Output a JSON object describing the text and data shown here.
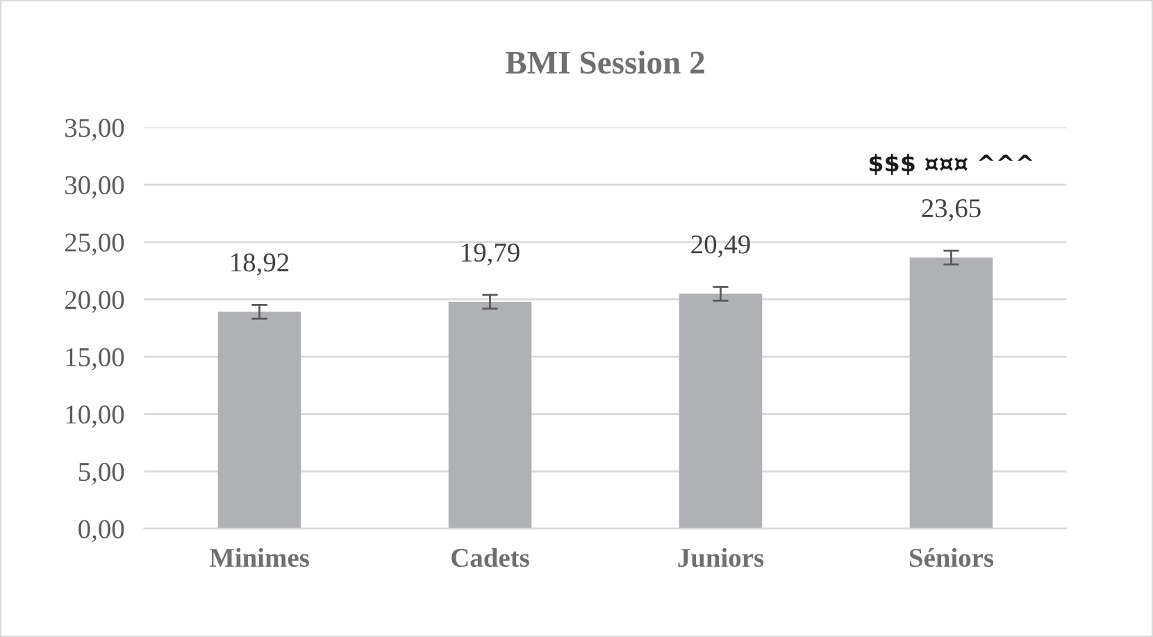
{
  "chart_data": {
    "type": "bar",
    "title": "BMI Session 2",
    "categories": [
      "Minimes",
      "Cadets",
      "Juniors",
      "Séniors"
    ],
    "values": [
      18.92,
      19.79,
      20.49,
      23.65
    ],
    "errors": [
      0.6,
      0.6,
      0.6,
      0.6
    ],
    "color": "#b0b1b4",
    "value_labels": [
      "18,92",
      "19,79",
      "20,49",
      "23,65"
    ],
    "annotations": [
      "$$$ ¤¤¤ ^^^"
    ],
    "ylim": [
      0,
      35
    ],
    "yticks": [
      {
        "value": 0,
        "label": "0,00"
      },
      {
        "value": 5,
        "label": "5,00"
      },
      {
        "value": 10,
        "label": "10,00"
      },
      {
        "value": 15,
        "label": "15,00"
      },
      {
        "value": 20,
        "label": "20,00"
      },
      {
        "value": 25,
        "label": "25,00"
      },
      {
        "value": 30,
        "label": "30,00"
      },
      {
        "value": 35,
        "label": "35,00"
      }
    ],
    "grid": "y",
    "legend": false
  }
}
